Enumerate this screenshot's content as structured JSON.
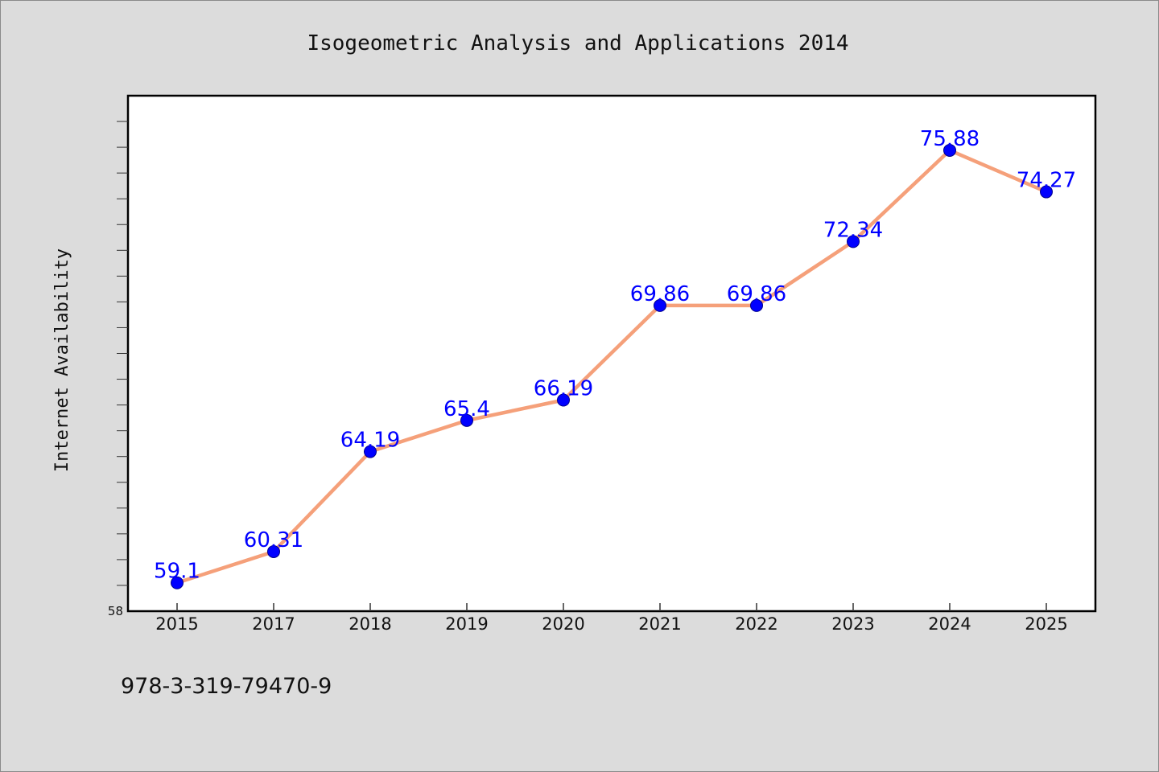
{
  "chart_data": {
    "type": "line",
    "title": "Isogeometric Analysis and Applications 2014",
    "ylabel": "Internet Availability",
    "xlabel": "",
    "categories": [
      "2015",
      "2017",
      "2018",
      "2019",
      "2020",
      "2021",
      "2022",
      "2023",
      "2024",
      "2025"
    ],
    "values": [
      59.1,
      60.31,
      64.19,
      65.4,
      66.19,
      69.86,
      69.86,
      72.34,
      75.88,
      74.27
    ],
    "data_labels": [
      "59.1",
      "60.31",
      "64.19",
      "65.4",
      "66.19",
      "69.86",
      "69.86",
      "72.34",
      "75.88",
      "74.27"
    ],
    "ylim": [
      58,
      78
    ],
    "y_tick_labels": [
      "58"
    ],
    "grid": false,
    "legend": "none",
    "colors": {
      "line": "#f5a07a",
      "marker": "#0000ff",
      "label": "#0000ff",
      "background": "#dcdcdc",
      "plot_background": "#ffffff"
    }
  },
  "footer": {
    "isbn": "978-3-319-79470-9"
  }
}
